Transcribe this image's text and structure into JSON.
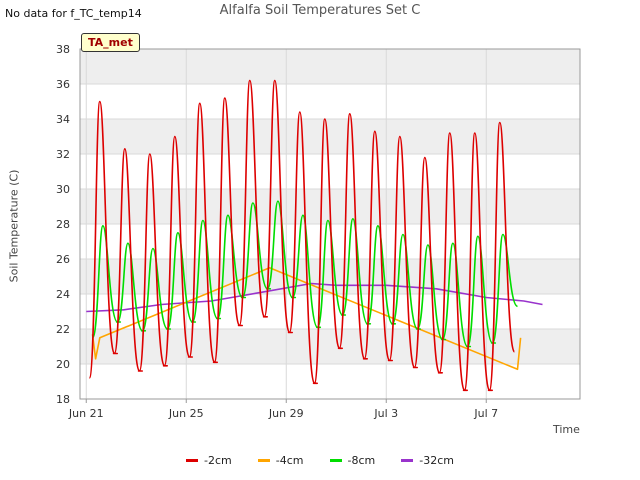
{
  "header": {
    "note": "No data for f_TC_temp14",
    "title": "Alfalfa Soil Temperatures Set C"
  },
  "badge": "TA_met",
  "colors": {
    "band": "#eeeeee",
    "grid": "#d9d9d9",
    "axis": "#999999"
  },
  "chart_data": {
    "type": "line",
    "title": "Alfalfa Soil Temperatures Set C",
    "xlabel": "Time",
    "ylabel": "Soil Temperature (C)",
    "ylim": [
      18,
      38
    ],
    "yticks": [
      18,
      20,
      22,
      24,
      26,
      28,
      30,
      32,
      34,
      36,
      38
    ],
    "xlim": [
      "2021-06-20T18:00",
      "2021-07-10T18:00"
    ],
    "xticks": [
      {
        "date": "2021-06-21",
        "label": "Jun 21"
      },
      {
        "date": "2021-06-25",
        "label": "Jun 25"
      },
      {
        "date": "2021-06-29",
        "label": "Jun 29"
      },
      {
        "date": "2021-07-03",
        "label": "Jul 3"
      },
      {
        "date": "2021-07-07",
        "label": "Jul 7"
      }
    ],
    "grid": true,
    "legend_position": "bottom",
    "series": [
      {
        "name": "-2cm",
        "color": "#dd0000",
        "daily_max": [
          35.0,
          32.3,
          32.0,
          33.0,
          34.9,
          35.2,
          36.2,
          36.2,
          34.4,
          34.0,
          34.3,
          33.3,
          33.0,
          31.8,
          33.2,
          33.2,
          33.8
        ],
        "daily_min": [
          19.2,
          20.6,
          19.6,
          19.9,
          20.4,
          20.1,
          22.2,
          22.7,
          21.8,
          18.9,
          20.9,
          20.3,
          20.2,
          19.8,
          19.5,
          18.5,
          18.5
        ],
        "end_value": 20.7
      },
      {
        "name": "-4cm",
        "color": "#ffa500",
        "points": [
          {
            "x": "2021-06-21T06:00",
            "y": 21.7
          },
          {
            "x": "2021-06-21T09:00",
            "y": 20.3
          },
          {
            "x": "2021-06-21T13:00",
            "y": 21.5
          },
          {
            "x": "2021-06-28T08:00",
            "y": 25.5
          },
          {
            "x": "2021-07-08T06:00",
            "y": 19.7
          },
          {
            "x": "2021-07-08T09:00",
            "y": 21.5
          }
        ]
      },
      {
        "name": "-8cm",
        "color": "#00dd00",
        "daily_max": [
          27.9,
          26.9,
          26.6,
          27.5,
          28.2,
          28.5,
          29.2,
          29.3,
          28.5,
          28.2,
          28.3,
          27.9,
          27.4,
          26.8,
          26.9,
          27.3,
          27.4
        ],
        "daily_min": [
          21.5,
          22.4,
          21.9,
          22.0,
          22.4,
          22.6,
          23.8,
          24.3,
          23.8,
          22.1,
          22.8,
          22.3,
          22.3,
          22.0,
          21.4,
          21.0,
          21.2
        ],
        "end_value": 23.3
      },
      {
        "name": "-32cm",
        "color": "#9933cc",
        "points": [
          {
            "x": "2021-06-21T00:00",
            "y": 23.0
          },
          {
            "x": "2021-06-22T12:00",
            "y": 23.1
          },
          {
            "x": "2021-06-24T00:00",
            "y": 23.4
          },
          {
            "x": "2021-06-26T00:00",
            "y": 23.6
          },
          {
            "x": "2021-06-28T00:00",
            "y": 24.1
          },
          {
            "x": "2021-06-30T00:00",
            "y": 24.6
          },
          {
            "x": "2021-07-01T00:00",
            "y": 24.5
          },
          {
            "x": "2021-07-03T00:00",
            "y": 24.5
          },
          {
            "x": "2021-07-05T00:00",
            "y": 24.3
          },
          {
            "x": "2021-07-07T00:00",
            "y": 23.8
          },
          {
            "x": "2021-07-08T12:00",
            "y": 23.6
          },
          {
            "x": "2021-07-09T06:00",
            "y": 23.4
          }
        ]
      }
    ]
  }
}
